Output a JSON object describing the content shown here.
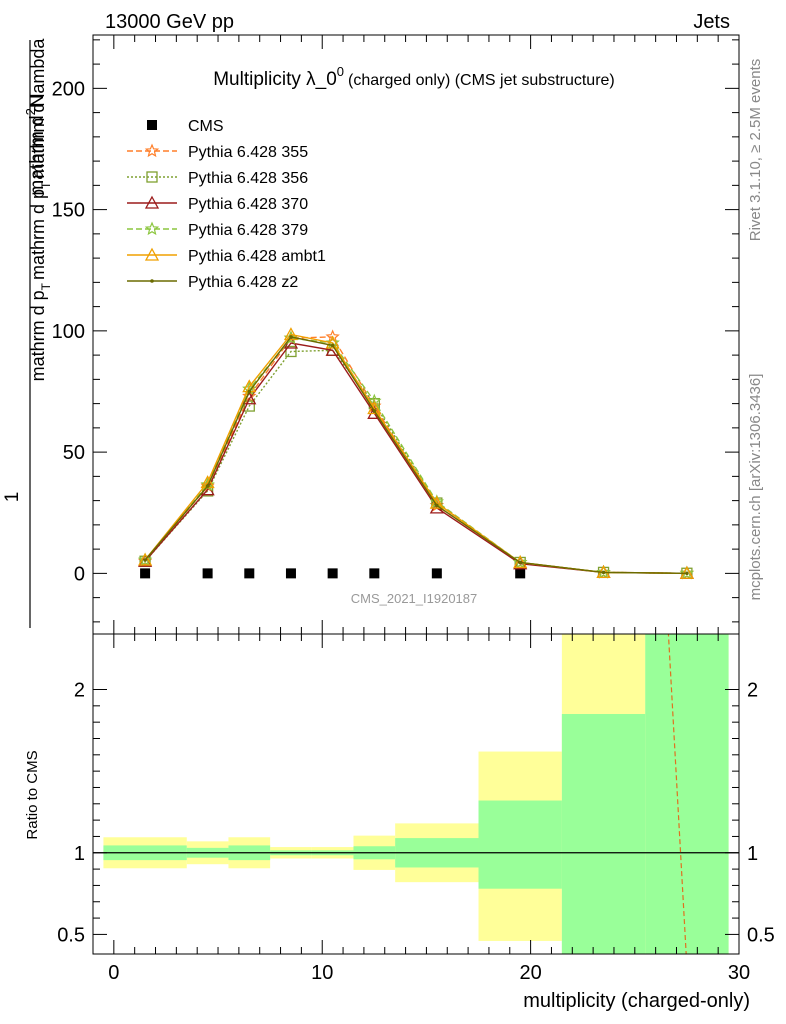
{
  "header": {
    "left": "13000 GeV pp",
    "right": "Jets"
  },
  "side_labels": {
    "rivet": "Rivet 3.1.10, ≥ 2.5M events",
    "mcplots": "mcplots.cern.ch [arXiv:1306.3436]"
  },
  "chart_data": [
    {
      "type": "line",
      "title": "Multiplicity λ_0",
      "title_superscript": "0",
      "title_suffix": "(charged only) (CMS jet substructure)",
      "ylabel": "1 / (mathrm d N / mathrm d p_T mathrm d p_T mathrm d lambda) · mathrm d²N",
      "ylabel_parts": {
        "one": "1",
        "numerator": "mathrm d²N",
        "numerator_base": "mathrm d",
        "numerator_sup": "2",
        "numerator_tail": "N",
        "denominator_top": "mathrm d p",
        "denominator_top_sub": "T",
        "denominator_top_tail": "mathrm d p",
        "denominator_top_sub2": "T",
        "denominator_top_tail2": "mathrm d lambda",
        "denominator": "mathrm d N / mathrm d p",
        "denominator_sub": "T",
        "denominator_tail": "mathrm d p",
        "denominator_sub2": "T",
        "denominator_tail2": "mathrm d lambda"
      },
      "xlim": [
        -1,
        30
      ],
      "ylim": [
        -25,
        222
      ],
      "yticks": [
        0,
        50,
        100,
        150,
        200
      ],
      "watermark": "CMS_2021_I1920187",
      "legend_position": "top-left",
      "x": [
        1.5,
        4.5,
        6.5,
        8.5,
        10.5,
        12.5,
        15.5,
        19.5,
        23.5,
        27.5
      ],
      "series": [
        {
          "name": "CMS",
          "color": "#000000",
          "marker": "square",
          "style": "none",
          "values": [
            0,
            0,
            0,
            0,
            0,
            0,
            0,
            0,
            null,
            null
          ]
        },
        {
          "name": "Pythia 6.428 355",
          "color": "#ff7f2a",
          "marker": "star",
          "style": "dashed",
          "values": [
            5,
            36,
            73,
            97,
            97.5,
            69,
            28,
            4.5,
            0.4,
            0.05
          ]
        },
        {
          "name": "Pythia 6.428 356",
          "color": "#7fa030",
          "marker": "square-open",
          "style": "dotted",
          "values": [
            5,
            34,
            69,
            91.5,
            92,
            70,
            29,
            4.5,
            0.4,
            0.05
          ]
        },
        {
          "name": "Pythia 6.428 370",
          "color": "#9b1b1b",
          "marker": "triangle-open",
          "style": "solid",
          "values": [
            5,
            34.5,
            72,
            95,
            92,
            66,
            27,
            4,
            0.4,
            0.05
          ]
        },
        {
          "name": "Pythia 6.428 379",
          "color": "#8cc63f",
          "marker": "star",
          "style": "dashed",
          "values": [
            5.5,
            36.5,
            76,
            97,
            95,
            71,
            29.5,
            4.5,
            0.4,
            0.05
          ]
        },
        {
          "name": "Pythia 6.428 ambt1",
          "color": "#f0a000",
          "marker": "triangle-open",
          "style": "solid",
          "values": [
            5.5,
            37.5,
            77,
            98.5,
            95,
            68,
            29,
            4.5,
            0.4,
            0.05
          ]
        },
        {
          "name": "Pythia 6.428 z2",
          "color": "#6b6b00",
          "marker": "dot",
          "style": "solid",
          "values": [
            5.5,
            36,
            75,
            97.5,
            94,
            67,
            28,
            4.5,
            0.4,
            0.05
          ]
        }
      ]
    },
    {
      "type": "area",
      "ylabel": "Ratio to CMS",
      "xlabel": "multiplicity (charged-only)",
      "xlim": [
        -1,
        30
      ],
      "ylim": [
        0.38,
        2.34
      ],
      "yticks": [
        0.5,
        1,
        2
      ],
      "xticks": [
        0,
        10,
        20,
        30
      ],
      "reference": 1,
      "bins": [
        {
          "lo": -0.5,
          "hi": 3.5,
          "inner": [
            0.955,
            1.045
          ],
          "outer": [
            0.905,
            1.095
          ]
        },
        {
          "lo": 3.5,
          "hi": 5.5,
          "inner": [
            0.97,
            1.03
          ],
          "outer": [
            0.93,
            1.07
          ]
        },
        {
          "lo": 5.5,
          "hi": 7.5,
          "inner": [
            0.955,
            1.045
          ],
          "outer": [
            0.905,
            1.095
          ]
        },
        {
          "lo": 7.5,
          "hi": 9.5,
          "inner": [
            0.985,
            1.015
          ],
          "outer": [
            0.965,
            1.035
          ]
        },
        {
          "lo": 9.5,
          "hi": 11.5,
          "inner": [
            0.985,
            1.015
          ],
          "outer": [
            0.965,
            1.035
          ]
        },
        {
          "lo": 11.5,
          "hi": 13.5,
          "inner": [
            0.96,
            1.04
          ],
          "outer": [
            0.895,
            1.105
          ]
        },
        {
          "lo": 13.5,
          "hi": 17.5,
          "inner": [
            0.91,
            1.09
          ],
          "outer": [
            0.82,
            1.18
          ]
        },
        {
          "lo": 17.5,
          "hi": 21.5,
          "inner": [
            0.78,
            1.32
          ],
          "outer": [
            0.46,
            1.62
          ]
        },
        {
          "lo": 21.5,
          "hi": 25.5,
          "inner": [
            0.3,
            1.85
          ],
          "outer": [
            0.3,
            2.6
          ]
        },
        {
          "lo": 25.5,
          "hi": 29.5,
          "inner": [
            0.3,
            2.6
          ],
          "outer": [
            0.3,
            2.6
          ]
        }
      ],
      "colors": {
        "inner": "#99ff99",
        "outer": "#ffff99"
      },
      "ratio_line": {
        "color": "#e07020",
        "style": "dashed",
        "x": [
          26.5,
          27.5
        ],
        "y": [
          2.6,
          0.3
        ]
      }
    }
  ]
}
